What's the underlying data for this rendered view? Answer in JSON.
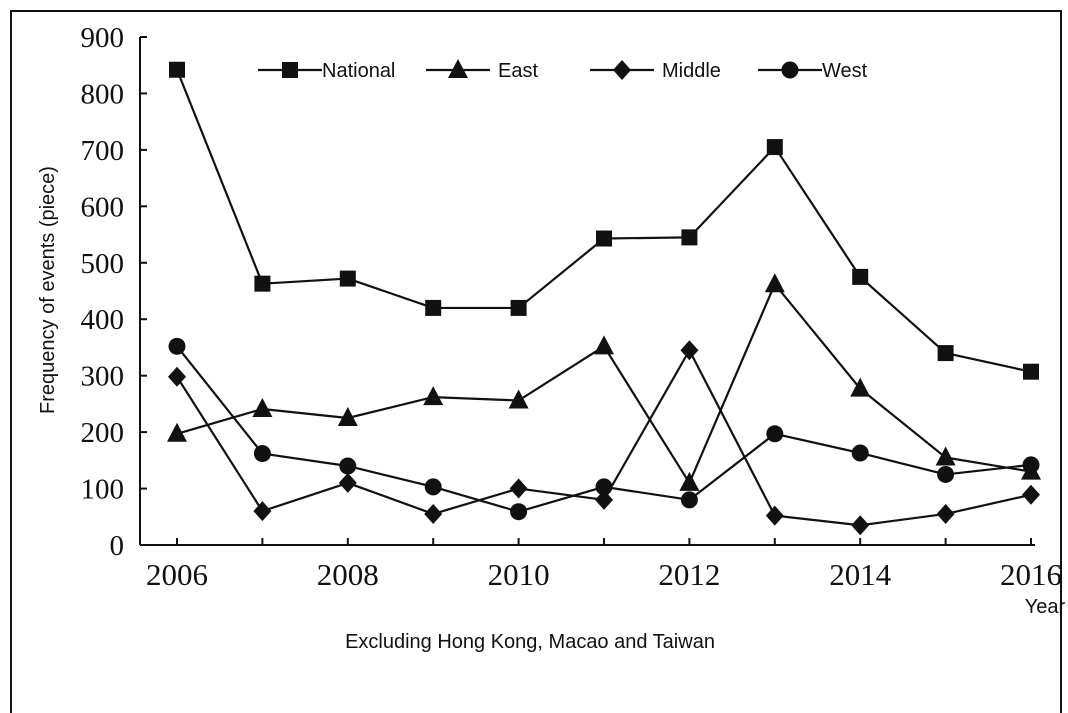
{
  "chart_data": {
    "type": "line",
    "title": "",
    "xlabel": "Year",
    "ylabel": "Frequency of events (piece)",
    "note": "Excluding Hong Kong, Macao and Taiwan",
    "x": [
      2006,
      2007,
      2008,
      2009,
      2010,
      2011,
      2012,
      2013,
      2014,
      2015,
      2016
    ],
    "x_ticks": [
      "2006",
      "2008",
      "2010",
      "2012",
      "2014",
      "2016"
    ],
    "y_ticks": [
      "0",
      "100",
      "200",
      "300",
      "400",
      "500",
      "600",
      "700",
      "800",
      "900"
    ],
    "ylim": [
      0,
      900
    ],
    "xlim": [
      2006,
      2016
    ],
    "grid": false,
    "legend_position": "top",
    "series": [
      {
        "name": "National",
        "marker": "square",
        "values": [
          842,
          463,
          472,
          420,
          420,
          543,
          545,
          705,
          475,
          340,
          307
        ]
      },
      {
        "name": "East",
        "marker": "triangle",
        "values": [
          197,
          241,
          225,
          262,
          256,
          352,
          110,
          462,
          277,
          155,
          130
        ]
      },
      {
        "name": "Middle",
        "marker": "diamond",
        "values": [
          298,
          60,
          110,
          55,
          100,
          80,
          345,
          52,
          35,
          55,
          89
        ]
      },
      {
        "name": "West",
        "marker": "circle",
        "values": [
          352,
          162,
          140,
          103,
          59,
          103,
          80,
          197,
          163,
          125,
          142
        ]
      }
    ]
  }
}
